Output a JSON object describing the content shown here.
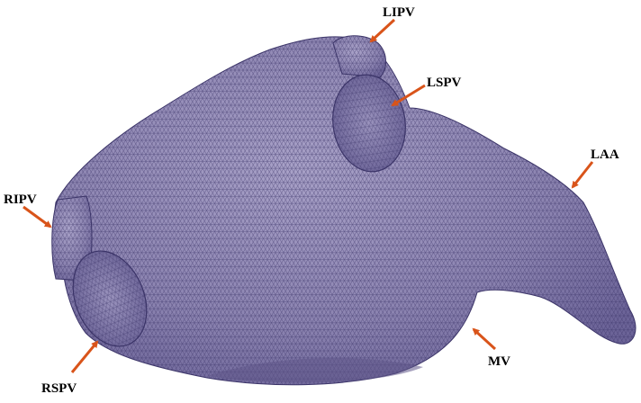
{
  "figure": {
    "title": "",
    "structure": "left atrium surface mesh"
  },
  "colors": {
    "mesh_fill": "#8e86b2",
    "mesh_line": "#3b3468",
    "arrow": "#d9541a",
    "label": "#000000"
  },
  "labels": {
    "lipv": "LIPV",
    "lspv": "LSPV",
    "laa": "LAA",
    "ripv": "RIPV",
    "rspv": "RSPV",
    "mv": "MV"
  }
}
